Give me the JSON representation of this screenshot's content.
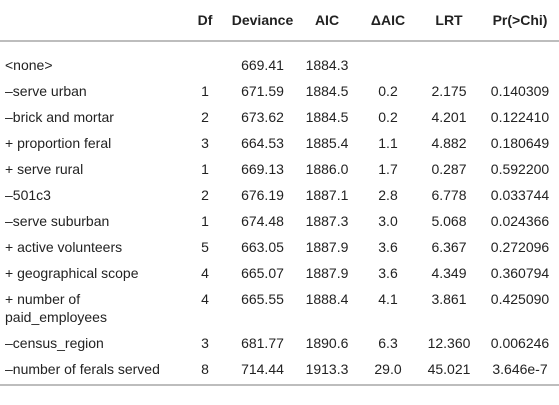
{
  "table": {
    "columns": [
      "Df",
      "Deviance",
      "AIC",
      "ΔAIC",
      "LRT",
      "Pr(>Chi)"
    ],
    "rows": [
      [
        "<none>",
        null,
        "669.41",
        "1884.3",
        null,
        null,
        null
      ],
      [
        "–serve urban",
        "1",
        "671.59",
        "1884.5",
        "0.2",
        "2.175",
        "0.140309"
      ],
      [
        "–brick and mortar",
        "2",
        "673.62",
        "1884.5",
        "0.2",
        "4.201",
        "0.122410"
      ],
      [
        "+ proportion feral",
        "3",
        "664.53",
        "1885.4",
        "1.1",
        "4.882",
        "0.180649"
      ],
      [
        "+ serve rural",
        "1",
        "669.13",
        "1886.0",
        "1.7",
        "0.287",
        "0.592200"
      ],
      [
        "–501c3",
        "2",
        "676.19",
        "1887.1",
        "2.8",
        "6.778",
        "0.033744"
      ],
      [
        "–serve suburban",
        "1",
        "674.48",
        "1887.3",
        "3.0",
        "5.068",
        "0.024366"
      ],
      [
        "+ active volunteers",
        "5",
        "663.05",
        "1887.9",
        "3.6",
        "6.367",
        "0.272096"
      ],
      [
        "+ geographical scope",
        "4",
        "665.07",
        "1887.9",
        "3.6",
        "4.349",
        "0.360794"
      ],
      [
        "+ number of paid_employees",
        "4",
        "665.55",
        "1888.4",
        "4.1",
        "3.861",
        "0.425090"
      ],
      [
        "–census_region",
        "3",
        "681.77",
        "1890.6",
        "6.3",
        "12.360",
        "0.006246"
      ],
      [
        "–number of ferals served",
        "8",
        "714.44",
        "1913.3",
        "29.0",
        "45.021",
        "3.646e-7"
      ]
    ]
  }
}
